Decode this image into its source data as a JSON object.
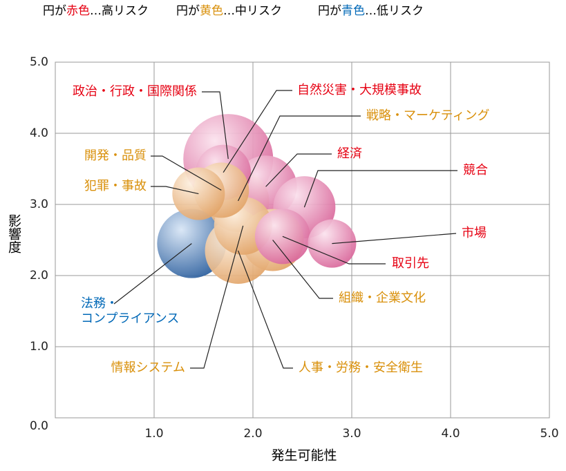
{
  "chart_data": {
    "type": "bubble",
    "legend": [
      {
        "prefix": "円が",
        "color_word": "赤色",
        "suffix": "…高リスク",
        "color": "#e60012",
        "bubble_color": "#e37aa8"
      },
      {
        "prefix": "円が",
        "color_word": "黄色",
        "suffix": "…中リスク",
        "color": "#d9900b",
        "bubble_color": "#eab27a"
      },
      {
        "prefix": "円が",
        "color_word": "青色",
        "suffix": "…低リスク",
        "color": "#0068b7",
        "bubble_color": "#3f74b0"
      }
    ],
    "xlabel": "発生可能性",
    "ylabel": "影響度",
    "xlim": [
      0,
      5
    ],
    "ylim": [
      0,
      5
    ],
    "xticks": [
      {
        "value": 1,
        "label": "1.0"
      },
      {
        "value": 2,
        "label": "2.0"
      },
      {
        "value": 3,
        "label": "3.0"
      },
      {
        "value": 4,
        "label": "4.0"
      },
      {
        "value": 5,
        "label": "5.0"
      }
    ],
    "yticks": [
      {
        "value": 0,
        "label": "0.0"
      },
      {
        "value": 1,
        "label": "1.0"
      },
      {
        "value": 2,
        "label": "2.0"
      },
      {
        "value": 3,
        "label": "3.0"
      },
      {
        "value": 4,
        "label": "4.0"
      },
      {
        "value": 5,
        "label": "5.0"
      }
    ],
    "grid": true,
    "labels": [
      [
        "政治・行政・国際関係"
      ],
      [
        "自然災害・大規模事故"
      ],
      [
        "戦略・マーケティング"
      ],
      [
        "経済"
      ],
      [
        "競合"
      ],
      [
        "市場"
      ],
      [
        "取引先"
      ],
      [
        "組織・企業文化"
      ],
      [
        "人事・労務・安全衛生"
      ],
      [
        "情報システム"
      ],
      [
        "開発・品質"
      ],
      [
        "犯罪・事故"
      ],
      [
        "法務・",
        "コンプライアンス"
      ]
    ],
    "groups": [
      0,
      0,
      1,
      0,
      0,
      0,
      0,
      1,
      1,
      1,
      1,
      1,
      2
    ],
    "x": [
      1.75,
      1.7,
      1.85,
      2.13,
      2.52,
      2.8,
      2.3,
      2.2,
      1.85,
      1.9,
      1.68,
      1.45,
      1.38
    ],
    "y": [
      3.64,
      3.45,
      3.05,
      3.25,
      2.96,
      2.45,
      2.55,
      2.5,
      2.35,
      2.7,
      3.2,
      3.15,
      2.45
    ],
    "sizes": [
      65,
      40,
      45,
      45,
      45,
      35,
      40,
      45,
      48,
      42,
      40,
      38,
      50
    ]
  }
}
